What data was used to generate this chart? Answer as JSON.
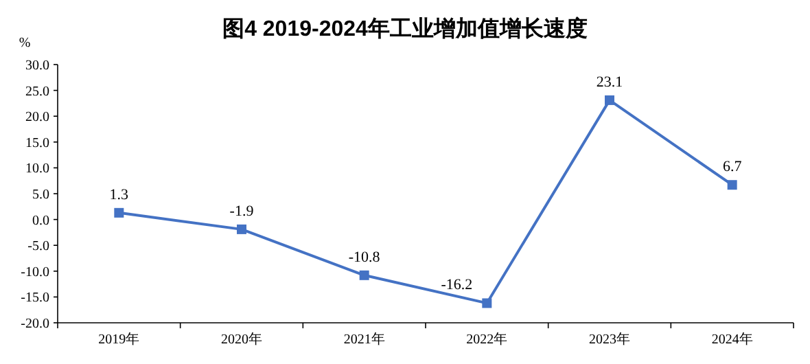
{
  "chart_data": {
    "type": "line",
    "title": "图4  2019-2024年工业增加值增长速度",
    "ylabel": "%",
    "categories": [
      "2019年",
      "2020年",
      "2021年",
      "2022年",
      "2023年",
      "2024年"
    ],
    "series": [
      {
        "color": "#4472c4",
        "values": [
          1.3,
          -1.9,
          -10.8,
          -16.2,
          23.1,
          6.7
        ]
      }
    ],
    "ylim": [
      -20,
      30
    ],
    "yticks": [
      {
        "value": -20,
        "label": "-20.0"
      },
      {
        "value": -15,
        "label": "-15.0"
      },
      {
        "value": -10,
        "label": "-10.0"
      },
      {
        "value": -5,
        "label": "-5.0"
      },
      {
        "value": 0,
        "label": "0.0"
      },
      {
        "value": 5,
        "label": "5.0"
      },
      {
        "value": 10,
        "label": "10.0"
      },
      {
        "value": 15,
        "label": "15.0"
      },
      {
        "value": 20,
        "label": "20.0"
      },
      {
        "value": 25,
        "label": "25.0"
      },
      {
        "value": 30,
        "label": "30.0"
      }
    ],
    "marker": "square",
    "line_style": "solid",
    "grid": false,
    "data_labels": true
  }
}
